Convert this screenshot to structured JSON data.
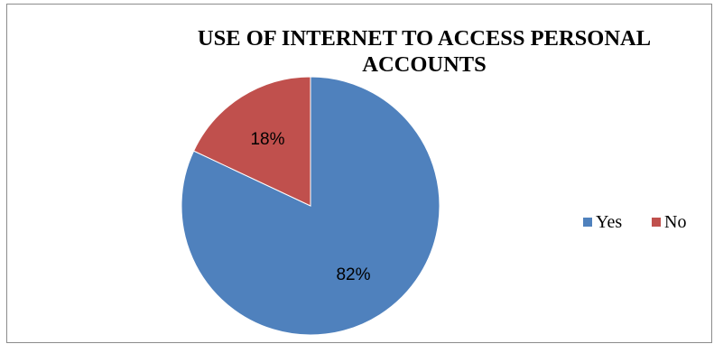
{
  "chart_data": {
    "type": "pie",
    "title": "USE OF INTERNET TO ACCESS PERSONAL ACCOUNTS",
    "categories": [
      "Yes",
      "No"
    ],
    "values": [
      82,
      18
    ],
    "data_labels": [
      "82%",
      "18%"
    ],
    "colors": [
      "#4f81bd",
      "#c0504d"
    ],
    "legend_position": "right"
  }
}
